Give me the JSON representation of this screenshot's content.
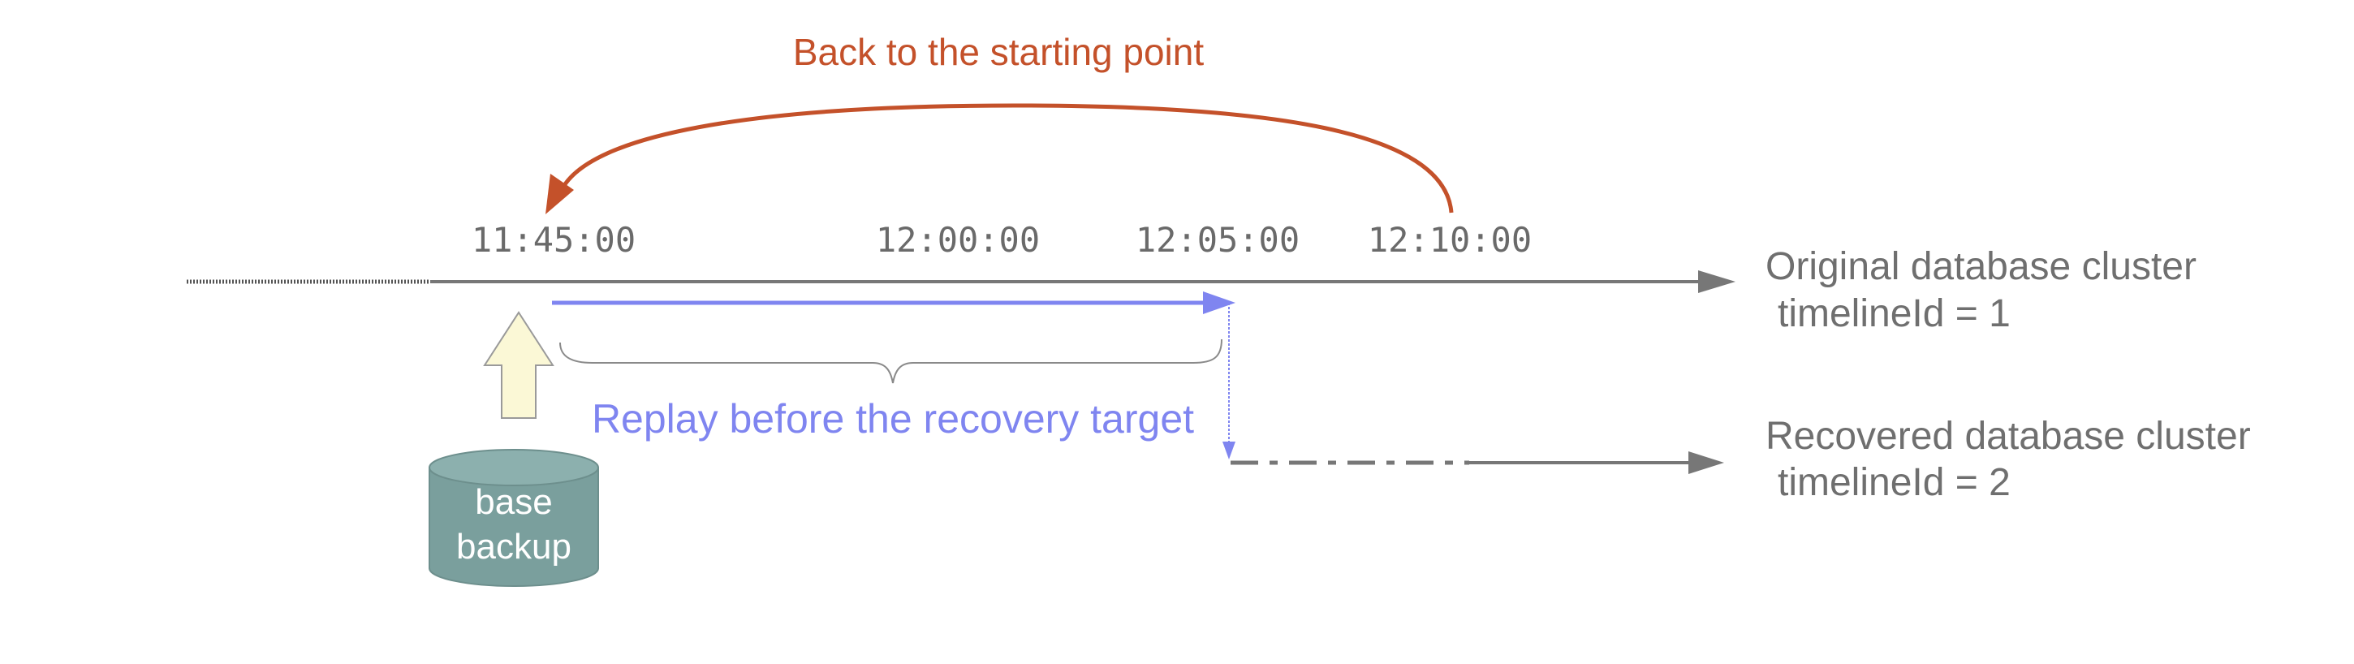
{
  "title": "Back to the starting point",
  "times": [
    "11:45:00",
    "12:00:00",
    "12:05:00",
    "12:10:00"
  ],
  "timelines": [
    {
      "label": "Original database cluster",
      "id_label": "timelineId = 1"
    },
    {
      "label": "Recovered database cluster",
      "id_label": "timelineId = 2"
    }
  ],
  "replay_label": "Replay before the recovery target",
  "backup": {
    "line1": "base",
    "line2": "backup"
  },
  "colors": {
    "back_arrow": "#c4512a",
    "replay": "#7f85f0",
    "timeline": "#777777",
    "label_text": "#6f6f6f",
    "time_text": "#6a6a6a",
    "cylinder": "#7a9f9d",
    "up_arrow_fill": "#fbf8d6"
  }
}
